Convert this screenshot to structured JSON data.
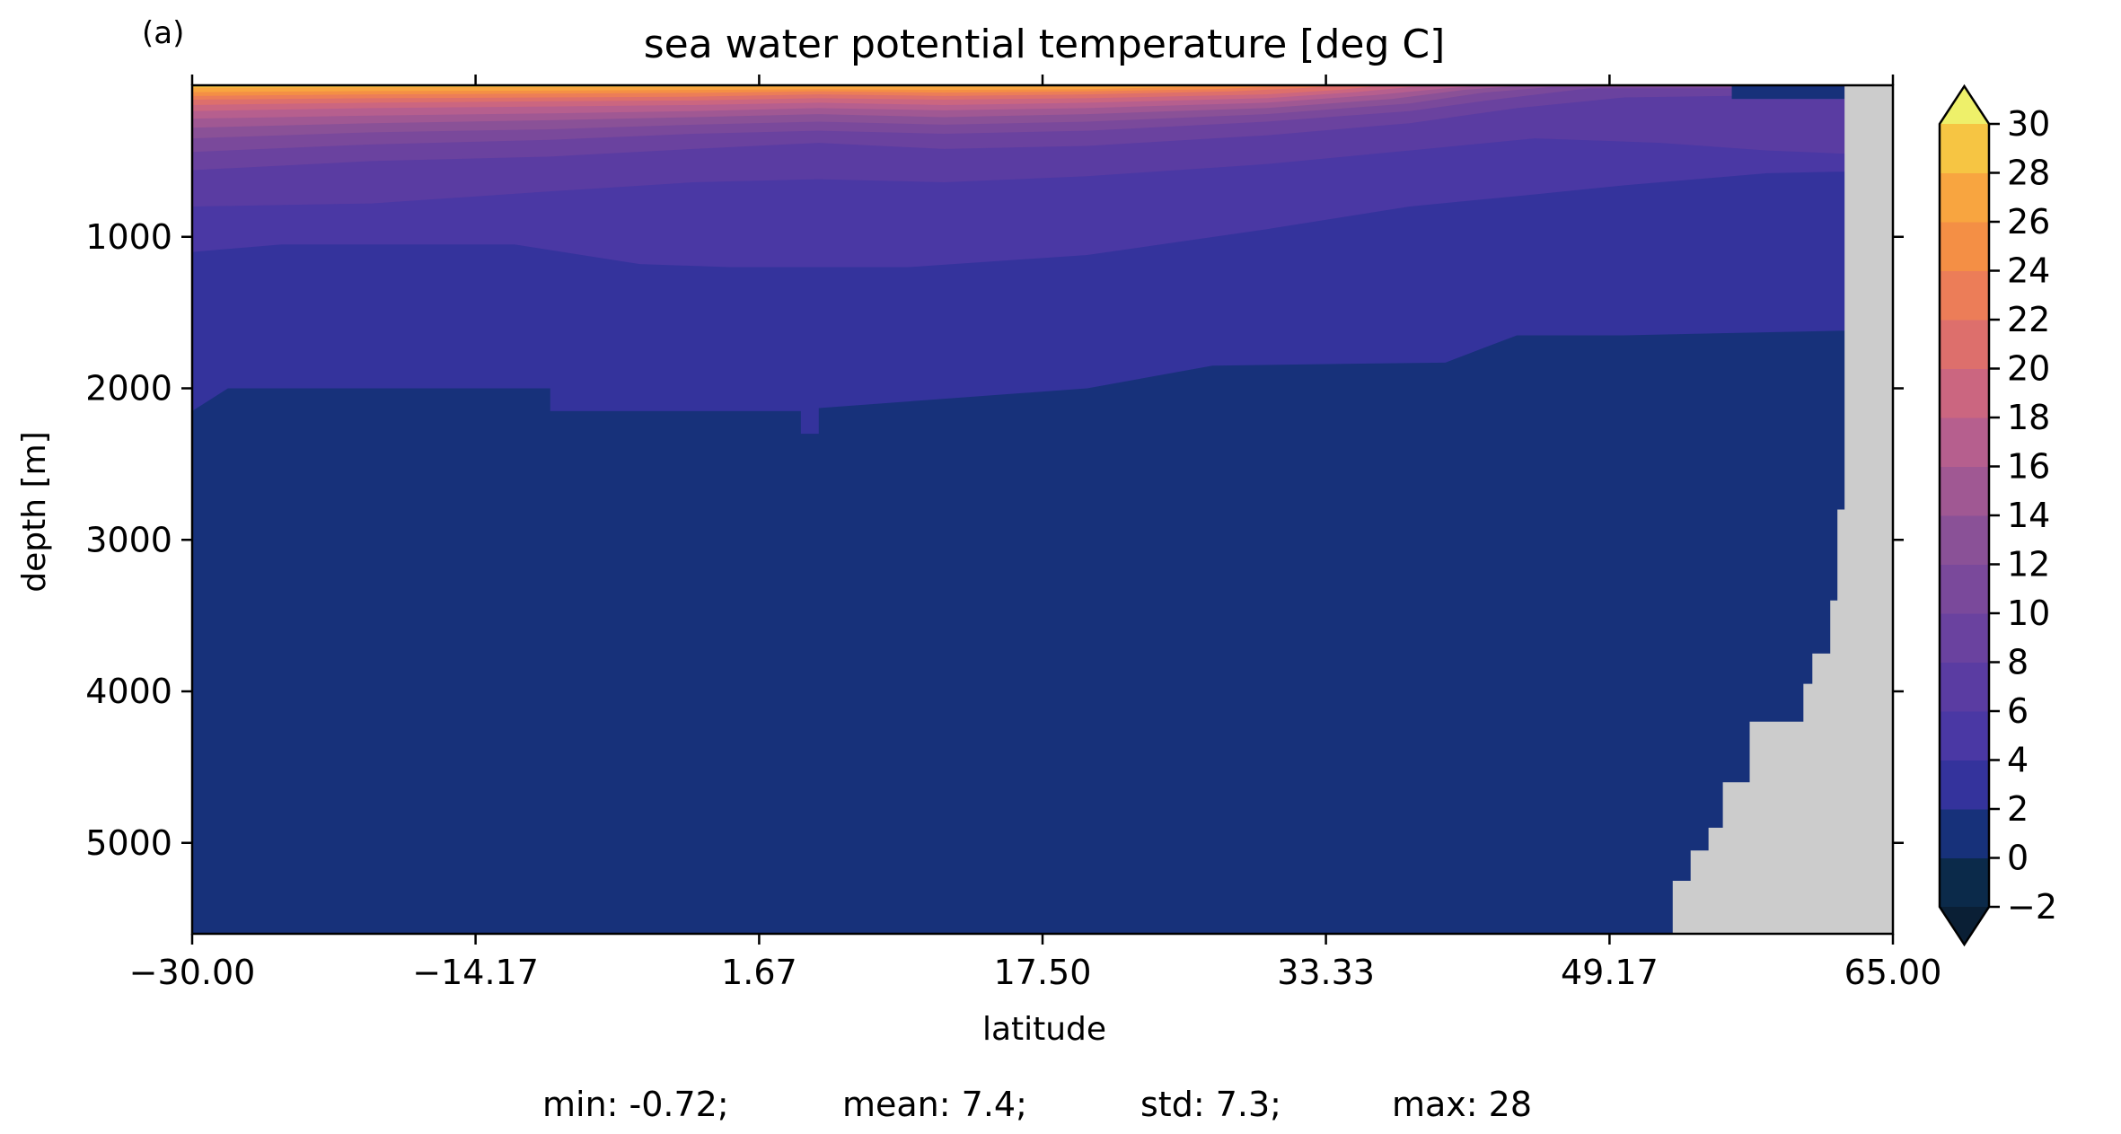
{
  "chart_data": {
    "type": "heatmap",
    "panel_label": "(a)",
    "title": "sea water potential temperature [deg C]",
    "xlabel": "latitude",
    "ylabel": "depth [m]",
    "xlim": [
      -30,
      65
    ],
    "ylim": [
      5600,
      0
    ],
    "x_ticks": [
      "−30.00",
      "−14.17",
      "1.67",
      "17.50",
      "33.33",
      "49.17",
      "65.00"
    ],
    "x_tick_values": [
      -30,
      -14.17,
      1.67,
      17.5,
      33.33,
      49.17,
      65
    ],
    "y_ticks": [
      "1000",
      "2000",
      "3000",
      "4000",
      "5000"
    ],
    "y_tick_values": [
      1000,
      2000,
      3000,
      4000,
      5000
    ],
    "colorbar": {
      "levels": [
        -2,
        0,
        2,
        4,
        6,
        8,
        10,
        12,
        14,
        16,
        18,
        20,
        22,
        24,
        26,
        28,
        30
      ],
      "tick_labels": [
        "−2",
        "0",
        "2",
        "4",
        "6",
        "8",
        "10",
        "12",
        "14",
        "16",
        "18",
        "20",
        "22",
        "24",
        "26",
        "28",
        "30"
      ],
      "colors": [
        "#0b2a4a",
        "#17317a",
        "#34339c",
        "#4a38a4",
        "#5a3ca2",
        "#6a429f",
        "#7a499b",
        "#8a5197",
        "#a05893",
        "#b65f8e",
        "#cb6680",
        "#dd6f6c",
        "#ec7d58",
        "#f48f45",
        "#f8a540",
        "#f6c543",
        "#ebe355"
      ],
      "extend": "both",
      "under_color": "#0a1f35",
      "over_color": "#eef06a"
    },
    "land_color": "#cccccc",
    "land_mask": {
      "description_depths_m": [
        [
          62.5,
          0
        ],
        [
          62.3,
          2800
        ],
        [
          61.9,
          3400
        ],
        [
          61.5,
          3750
        ],
        [
          60.5,
          3950
        ],
        [
          60.0,
          4200
        ],
        [
          57.0,
          4600
        ],
        [
          55.5,
          4900
        ],
        [
          54.7,
          5050
        ],
        [
          53.7,
          5250
        ],
        [
          52.7,
          5550
        ]
      ]
    },
    "isotherm_depths_m": [
      {
        "level": 2,
        "points": [
          [
            -30,
            2150
          ],
          [
            -28,
            2000
          ],
          [
            -10,
            2000
          ],
          [
            -10,
            2150
          ],
          [
            4,
            2150
          ],
          [
            4,
            2300
          ],
          [
            5,
            2300
          ],
          [
            5,
            2130
          ],
          [
            20,
            2000
          ],
          [
            27,
            1850
          ],
          [
            40,
            1830
          ],
          [
            44,
            1650
          ],
          [
            50,
            1650
          ],
          [
            62,
            1620
          ]
        ]
      },
      {
        "level": 4,
        "points": [
          [
            -30,
            1100
          ],
          [
            -25,
            1050
          ],
          [
            -12,
            1050
          ],
          [
            -5,
            1180
          ],
          [
            0,
            1200
          ],
          [
            10,
            1200
          ],
          [
            20,
            1120
          ],
          [
            30,
            950
          ],
          [
            38,
            800
          ],
          [
            45,
            720
          ],
          [
            50,
            660
          ],
          [
            58,
            580
          ],
          [
            62,
            570
          ]
        ]
      },
      {
        "level": 6,
        "points": [
          [
            -30,
            800
          ],
          [
            -20,
            780
          ],
          [
            -10,
            700
          ],
          [
            -2,
            640
          ],
          [
            5,
            620
          ],
          [
            12,
            640
          ],
          [
            20,
            600
          ],
          [
            30,
            520
          ],
          [
            38,
            430
          ],
          [
            45,
            350
          ],
          [
            52,
            380
          ],
          [
            58,
            430
          ],
          [
            62,
            450
          ]
        ]
      },
      {
        "level": 8,
        "points": [
          [
            -30,
            560
          ],
          [
            -20,
            500
          ],
          [
            -10,
            470
          ],
          [
            -2,
            420
          ],
          [
            5,
            380
          ],
          [
            12,
            420
          ],
          [
            20,
            400
          ],
          [
            30,
            330
          ],
          [
            38,
            250
          ],
          [
            44,
            150
          ],
          [
            50,
            80
          ],
          [
            62,
            60
          ]
        ]
      },
      {
        "level": 10,
        "points": [
          [
            -30,
            440
          ],
          [
            -20,
            390
          ],
          [
            -10,
            360
          ],
          [
            -2,
            320
          ],
          [
            5,
            300
          ],
          [
            12,
            320
          ],
          [
            20,
            300
          ],
          [
            30,
            240
          ],
          [
            38,
            170
          ],
          [
            43,
            90
          ],
          [
            48,
            20
          ]
        ]
      },
      {
        "level": 12,
        "points": [
          [
            -30,
            350
          ],
          [
            -20,
            310
          ],
          [
            -10,
            290
          ],
          [
            -2,
            260
          ],
          [
            5,
            240
          ],
          [
            12,
            260
          ],
          [
            20,
            240
          ],
          [
            30,
            190
          ],
          [
            38,
            120
          ],
          [
            42,
            50
          ],
          [
            46,
            10
          ]
        ]
      },
      {
        "level": 14,
        "points": [
          [
            -30,
            280
          ],
          [
            -20,
            250
          ],
          [
            -10,
            230
          ],
          [
            -2,
            210
          ],
          [
            5,
            190
          ],
          [
            12,
            210
          ],
          [
            20,
            190
          ],
          [
            30,
            150
          ],
          [
            37,
            90
          ],
          [
            41,
            30
          ],
          [
            44,
            5
          ]
        ]
      },
      {
        "level": 16,
        "points": [
          [
            -30,
            220
          ],
          [
            -20,
            200
          ],
          [
            -10,
            185
          ],
          [
            -2,
            170
          ],
          [
            5,
            150
          ],
          [
            12,
            165
          ],
          [
            20,
            150
          ],
          [
            30,
            115
          ],
          [
            36,
            65
          ],
          [
            40,
            20
          ],
          [
            42,
            3
          ]
        ]
      },
      {
        "level": 18,
        "points": [
          [
            -30,
            170
          ],
          [
            -20,
            150
          ],
          [
            -10,
            140
          ],
          [
            -2,
            130
          ],
          [
            5,
            115
          ],
          [
            12,
            130
          ],
          [
            20,
            115
          ],
          [
            30,
            85
          ],
          [
            35,
            45
          ],
          [
            38,
            12
          ],
          [
            40,
            2
          ]
        ]
      },
      {
        "level": 20,
        "points": [
          [
            -30,
            130
          ],
          [
            -20,
            115
          ],
          [
            -10,
            105
          ],
          [
            -2,
            100
          ],
          [
            5,
            85
          ],
          [
            12,
            95
          ],
          [
            20,
            85
          ],
          [
            30,
            60
          ],
          [
            34,
            30
          ],
          [
            36,
            8
          ],
          [
            38,
            1
          ]
        ]
      },
      {
        "level": 22,
        "points": [
          [
            -30,
            95
          ],
          [
            -20,
            85
          ],
          [
            -10,
            80
          ],
          [
            -2,
            75
          ],
          [
            5,
            60
          ],
          [
            12,
            70
          ],
          [
            20,
            60
          ],
          [
            28,
            40
          ],
          [
            32,
            18
          ],
          [
            34,
            4
          ],
          [
            35,
            0
          ]
        ]
      },
      {
        "level": 24,
        "points": [
          [
            -30,
            70
          ],
          [
            -20,
            60
          ],
          [
            -10,
            55
          ],
          [
            -2,
            50
          ],
          [
            5,
            40
          ],
          [
            12,
            48
          ],
          [
            20,
            40
          ],
          [
            27,
            25
          ],
          [
            30,
            10
          ],
          [
            32,
            2
          ],
          [
            33,
            0
          ]
        ]
      },
      {
        "level": 26,
        "points": [
          [
            -30,
            45
          ],
          [
            -20,
            38
          ],
          [
            -10,
            35
          ],
          [
            -2,
            30
          ],
          [
            5,
            25
          ],
          [
            12,
            30
          ],
          [
            20,
            25
          ],
          [
            25,
            12
          ],
          [
            28,
            3
          ],
          [
            30,
            0
          ]
        ]
      },
      {
        "level": 28,
        "points": [
          [
            -30,
            15
          ],
          [
            -15,
            12
          ],
          [
            -5,
            10
          ],
          [
            5,
            8
          ],
          [
            15,
            8
          ],
          [
            22,
            4
          ],
          [
            25,
            0
          ]
        ]
      }
    ],
    "cold_surface_patch": {
      "lat_range": [
        56,
        62.3
      ],
      "max_depth_m": 90,
      "level": 0
    },
    "stats": {
      "min": "min: -0.72;",
      "mean": "mean: 7.4;",
      "std": "std: 7.3;",
      "max": "max: 28"
    }
  }
}
